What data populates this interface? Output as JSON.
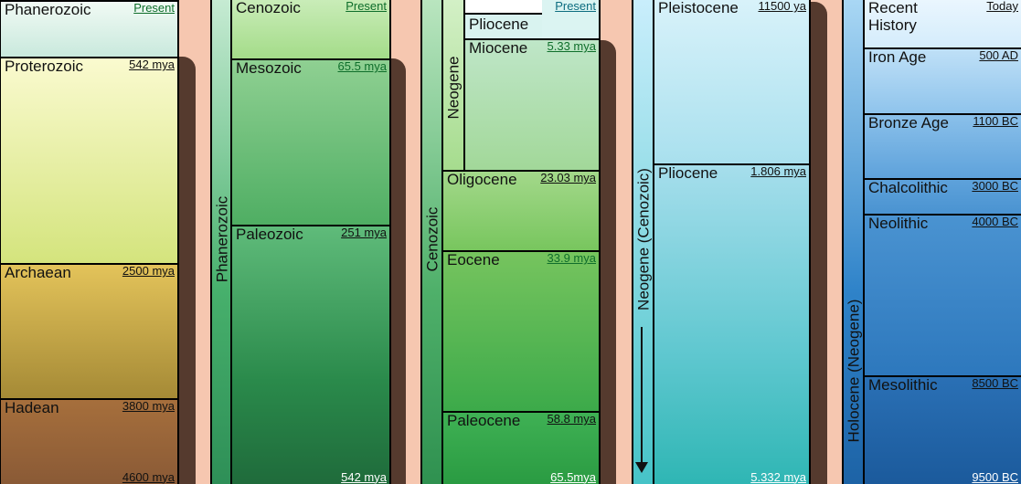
{
  "columns": [
    {
      "items": [
        {
          "name": "Phanerozoic",
          "date": "Present"
        },
        {
          "name": "Proterozoic",
          "date": "542 mya"
        },
        {
          "name": "Archaean",
          "date": "2500 mya"
        },
        {
          "name": "Hadean",
          "date": "3800 mya"
        }
      ],
      "bottom": "4600 mya"
    },
    {
      "band": "Phanerozoic",
      "items": [
        {
          "name": "Cenozoic",
          "date": "Present"
        },
        {
          "name": "Mesozoic",
          "date": "65.5 mya"
        },
        {
          "name": "Paleozoic",
          "date": "251 mya"
        }
      ],
      "bottom": "542 mya"
    },
    {
      "band": "Cenozoic",
      "sub_band": "Neogene",
      "items": [
        {
          "name": "Pliocene",
          "date": "Present"
        },
        {
          "name": "Miocene",
          "date": "5.33 mya"
        },
        {
          "name": "Oligocene",
          "date": "23.03 mya"
        },
        {
          "name": "Eocene",
          "date": "33.9 mya"
        },
        {
          "name": "Paleocene",
          "date": "58.8 mya"
        }
      ],
      "bottom": "65.5mya"
    },
    {
      "band": "Neogene (Cenozoic)",
      "items": [
        {
          "name": "Pleistocene",
          "date": "11500 ya"
        },
        {
          "name": "Pliocene",
          "date": "1.806 mya"
        }
      ],
      "bottom": "5.332 mya"
    },
    {
      "band": "Holocene (Neogene)",
      "items": [
        {
          "name": "Recent History",
          "date": "Today"
        },
        {
          "name": "Iron Age",
          "date": "500 AD"
        },
        {
          "name": "Bronze Age",
          "date": "1100 BC"
        },
        {
          "name": "Chalcolithic",
          "date": "3000 BC"
        },
        {
          "name": "Neolithic",
          "date": "4000 BC"
        },
        {
          "name": "Mesolithic",
          "date": "8500 BC"
        }
      ],
      "bottom": "9500 BC"
    }
  ],
  "colors": {
    "peach": "#f6c7b0",
    "shadow": "#553a2e",
    "band_green": "#3da062",
    "band_teal": "#3aa77a",
    "band_blue": "#1e6fb5"
  }
}
